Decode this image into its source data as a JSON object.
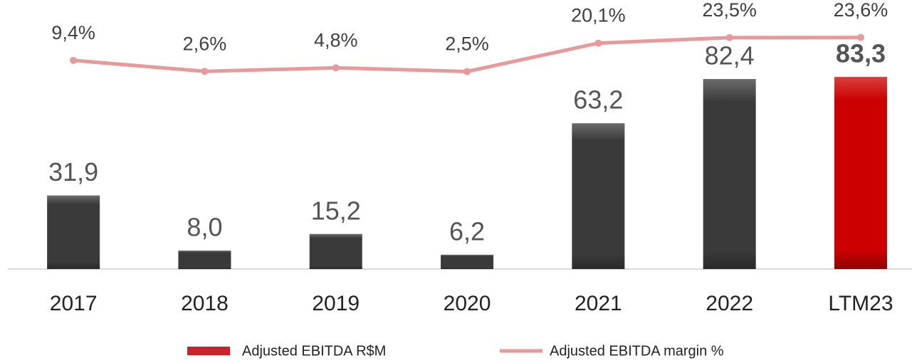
{
  "chart_data": {
    "type": "bar_line",
    "categories": [
      "2017",
      "2018",
      "2019",
      "2020",
      "2021",
      "2022",
      "LTM23"
    ],
    "ylim": [
      0,
      100
    ],
    "y2lim": [
      -120,
      23
    ],
    "series": [
      {
        "name": "Adjusted EBITDA R$M",
        "color": "#c9222a",
        "colors": [
          "#3a3a3a",
          "#3a3a3a",
          "#3a3a3a",
          "#3a3a3a",
          "#3a3a3a",
          "#3a3a3a",
          "#cc0000"
        ],
        "values": [
          31.9,
          8.0,
          15.2,
          6.2,
          63.2,
          82.4,
          83.3
        ],
        "value_labels": [
          "31,9",
          "8,0",
          "15,2",
          "6,2",
          "63,2",
          "82,4",
          "83,3"
        ]
      },
      {
        "name": "Adjusted EBITDA margin %",
        "color": "#e89a9a",
        "axis": "y2",
        "values": [
          9.4,
          2.6,
          4.8,
          2.5,
          20.1,
          23.5,
          23.6
        ],
        "value_labels": [
          "9,4%",
          "2,6%",
          "4,8%",
          "2,5%",
          "20,1%",
          "23,5%",
          "23,6%"
        ]
      }
    ]
  }
}
